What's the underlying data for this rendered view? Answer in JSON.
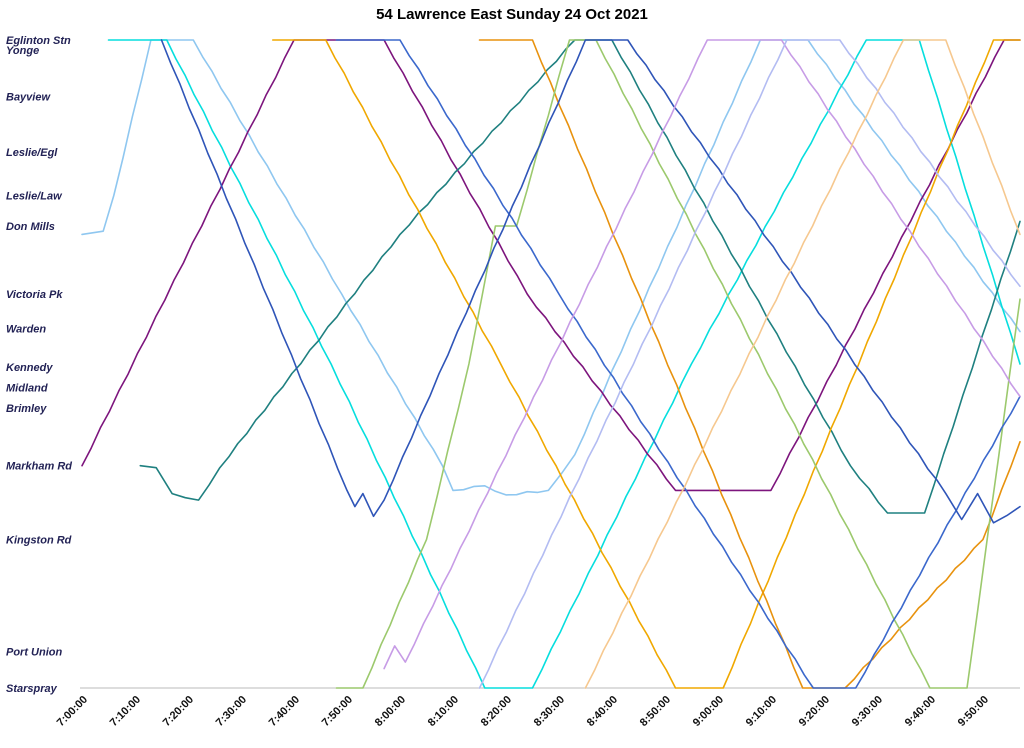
{
  "title": "54 Lawrence East Sunday 24 Oct 2021",
  "chart_data": {
    "type": "line",
    "subtype": "marey-time-distance-diagram",
    "title": "54 Lawrence East Sunday 24 Oct 2021",
    "xlabel": "",
    "ylabel": "",
    "grid": false,
    "legend": "none",
    "x_axis": {
      "start_min": 0,
      "end_min": 177,
      "tick_interval_min": 10,
      "ticks": [
        "7:00:00",
        "7:10:00",
        "7:20:00",
        "7:30:00",
        "7:40:00",
        "7:50:00",
        "8:00:00",
        "8:10:00",
        "8:20:00",
        "8:30:00",
        "8:40:00",
        "8:50:00",
        "9:00:00",
        "9:10:00",
        "9:20:00",
        "9:30:00",
        "9:40:00",
        "9:50:00"
      ]
    },
    "y_axis": {
      "stops": [
        {
          "label": "Eglinton Stn",
          "label2": "Yonge",
          "pos": 0.0
        },
        {
          "label": "Bayview",
          "pos": 0.087
        },
        {
          "label": "Leslie/Egl",
          "pos": 0.173
        },
        {
          "label": "Leslie/Law",
          "pos": 0.24
        },
        {
          "label": "Don Mills",
          "pos": 0.287
        },
        {
          "label": "Victoria Pk",
          "pos": 0.392
        },
        {
          "label": "Warden",
          "pos": 0.445
        },
        {
          "label": "Kennedy",
          "pos": 0.505
        },
        {
          "label": "Midland",
          "pos": 0.536
        },
        {
          "label": "Brimley",
          "pos": 0.568
        },
        {
          "label": "Markham Rd",
          "pos": 0.657
        },
        {
          "label": "Kingston Rd",
          "pos": 0.771
        },
        {
          "label": "Port Union",
          "pos": 0.944
        },
        {
          "label": "Starspray",
          "pos": 1.0
        }
      ]
    },
    "series": [
      {
        "name": "run-1-light-blue",
        "color": "#8fc7f0",
        "points": [
          [
            0,
            0.3
          ],
          [
            4,
            0.295
          ],
          [
            6,
            0.24
          ],
          [
            13,
            0.0
          ],
          [
            21,
            0.0
          ],
          [
            49,
            0.392
          ],
          [
            68,
            0.657
          ],
          [
            70,
            0.695
          ],
          [
            76,
            0.688
          ],
          [
            80,
            0.702
          ],
          [
            88,
            0.695
          ],
          [
            93,
            0.64
          ],
          [
            128,
            0.0
          ],
          [
            137,
            0.0
          ],
          [
            177,
            0.45
          ]
        ]
      },
      {
        "name": "run-2-cyan",
        "color": "#06dede",
        "points": [
          [
            5,
            0.0
          ],
          [
            16,
            0.0
          ],
          [
            47,
            0.5
          ],
          [
            76,
            1.0
          ],
          [
            85,
            1.0
          ],
          [
            115,
            0.5
          ],
          [
            148,
            0.0
          ],
          [
            158,
            0.0
          ],
          [
            177,
            0.5
          ]
        ]
      },
      {
        "name": "run-3-purple",
        "color": "#7d157d",
        "points": [
          [
            0,
            0.657
          ],
          [
            40,
            0.0
          ],
          [
            57,
            0.0
          ],
          [
            84,
            0.392
          ],
          [
            112,
            0.695
          ],
          [
            130,
            0.695
          ],
          [
            174,
            0.0
          ],
          [
            177,
            0.0
          ]
        ]
      },
      {
        "name": "run-4-teal",
        "color": "#1f8080",
        "points": [
          [
            11,
            0.657
          ],
          [
            14,
            0.66
          ],
          [
            17,
            0.7
          ],
          [
            22,
            0.71
          ],
          [
            26,
            0.66
          ],
          [
            60,
            0.3
          ],
          [
            93,
            0.0
          ],
          [
            100,
            0.0
          ],
          [
            145,
            0.657
          ],
          [
            152,
            0.73
          ],
          [
            159,
            0.73
          ],
          [
            177,
            0.28
          ]
        ]
      },
      {
        "name": "run-5-orange",
        "color": "#f0a800",
        "points": [
          [
            36,
            0.0
          ],
          [
            46,
            0.0
          ],
          [
            79,
            0.5
          ],
          [
            112,
            1.0
          ],
          [
            121,
            1.0
          ],
          [
            172,
            0.0
          ],
          [
            177,
            0.0
          ]
        ]
      },
      {
        "name": "run-6-dark-orange",
        "color": "#e8920e",
        "points": [
          [
            75,
            0.0
          ],
          [
            85,
            0.0
          ],
          [
            136,
            1.0
          ],
          [
            144,
            1.0
          ],
          [
            170,
            0.771
          ],
          [
            177,
            0.62
          ]
        ]
      },
      {
        "name": "run-7-green",
        "color": "#9cc96d",
        "points": [
          [
            48,
            1.0
          ],
          [
            53,
            1.0
          ],
          [
            65,
            0.771
          ],
          [
            73,
            0.5
          ],
          [
            78,
            0.287
          ],
          [
            82,
            0.287
          ],
          [
            92,
            0.0
          ],
          [
            97,
            0.0
          ],
          [
            160,
            1.0
          ],
          [
            167,
            1.0
          ],
          [
            177,
            0.4
          ]
        ]
      },
      {
        "name": "run-8-royal-blue",
        "color": "#3b68cc",
        "points": [
          [
            48,
            0.0
          ],
          [
            60,
            0.0
          ],
          [
            90,
            0.392
          ],
          [
            138,
            1.0
          ],
          [
            146,
            1.0
          ],
          [
            177,
            0.55
          ]
        ]
      },
      {
        "name": "run-9-royal-blue-b",
        "color": "#2f55b8",
        "points": [
          [
            15,
            0.0
          ],
          [
            50,
            0.695
          ],
          [
            51.5,
            0.72
          ],
          [
            53,
            0.7
          ],
          [
            55,
            0.735
          ],
          [
            57,
            0.71
          ],
          [
            95,
            0.0
          ],
          [
            103,
            0.0
          ],
          [
            163,
            0.7
          ],
          [
            166,
            0.74
          ],
          [
            169,
            0.7
          ],
          [
            172,
            0.745
          ],
          [
            177,
            0.72
          ]
        ]
      },
      {
        "name": "run-10-lavender",
        "color": "#c79ce6",
        "points": [
          [
            57,
            0.97
          ],
          [
            59,
            0.935
          ],
          [
            61,
            0.96
          ],
          [
            118,
            0.0
          ],
          [
            132,
            0.0
          ],
          [
            177,
            0.55
          ]
        ]
      },
      {
        "name": "run-11-periwinkle",
        "color": "#b3bcf2",
        "points": [
          [
            75,
            1.0
          ],
          [
            133,
            0.0
          ],
          [
            143,
            0.0
          ],
          [
            177,
            0.38
          ]
        ]
      },
      {
        "name": "run-12-light-orange",
        "color": "#f6c88f",
        "points": [
          [
            95,
            1.0
          ],
          [
            155,
            0.0
          ],
          [
            163,
            0.0
          ],
          [
            177,
            0.3
          ]
        ]
      }
    ]
  }
}
